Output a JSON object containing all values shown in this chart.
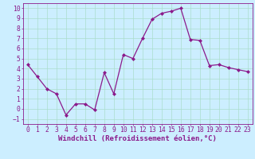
{
  "x": [
    0,
    1,
    2,
    3,
    4,
    5,
    6,
    7,
    8,
    9,
    10,
    11,
    12,
    13,
    14,
    15,
    16,
    17,
    18,
    19,
    20,
    21,
    22,
    23
  ],
  "y": [
    4.4,
    3.2,
    2.0,
    1.5,
    -0.6,
    0.5,
    0.5,
    -0.1,
    3.6,
    1.5,
    5.4,
    5.0,
    7.0,
    8.9,
    9.5,
    9.7,
    10.0,
    6.9,
    6.8,
    4.3,
    4.4,
    4.1,
    3.9,
    3.7
  ],
  "line_color": "#8b1a8b",
  "marker": "D",
  "marker_size": 2.0,
  "bg_color": "#cceeff",
  "grid_color": "#aaddcc",
  "xlabel": "Windchill (Refroidissement éolien,°C)",
  "xlim": [
    -0.5,
    23.5
  ],
  "ylim": [
    -1.5,
    10.5
  ],
  "xticks": [
    0,
    1,
    2,
    3,
    4,
    5,
    6,
    7,
    8,
    9,
    10,
    11,
    12,
    13,
    14,
    15,
    16,
    17,
    18,
    19,
    20,
    21,
    22,
    23
  ],
  "yticks": [
    -1,
    0,
    1,
    2,
    3,
    4,
    5,
    6,
    7,
    8,
    9,
    10
  ],
  "xlabel_fontsize": 6.5,
  "tick_fontsize": 5.8,
  "label_color": "#8b1a8b",
  "linewidth": 0.9
}
